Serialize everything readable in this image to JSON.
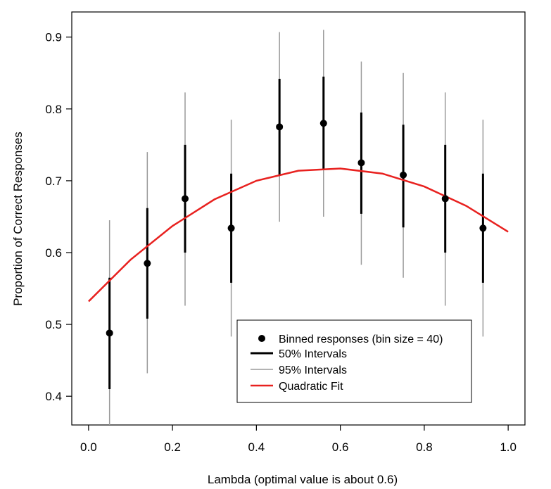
{
  "chart_data": {
    "type": "scatter",
    "xlabel": "Lambda (optimal value is about 0.6)",
    "ylabel": "Proportion of Correct Responses",
    "xlim": [
      -0.04,
      1.04
    ],
    "ylim": [
      0.36,
      0.935
    ],
    "x_ticks": [
      0.0,
      0.2,
      0.4,
      0.6,
      0.8,
      1.0
    ],
    "x_tick_labels": [
      "0.0",
      "0.2",
      "0.4",
      "0.6",
      "0.8",
      "1.0"
    ],
    "y_ticks": [
      0.4,
      0.5,
      0.6,
      0.7,
      0.8,
      0.9
    ],
    "y_tick_labels": [
      "0.4",
      "0.5",
      "0.6",
      "0.7",
      "0.8",
      "0.9"
    ],
    "grid": false,
    "legend_position": "bottom-right",
    "series": [
      {
        "name": "Binned responses (bin size = 40)",
        "kind": "points",
        "color": "#000000",
        "x": [
          0.05,
          0.14,
          0.23,
          0.34,
          0.455,
          0.56,
          0.65,
          0.75,
          0.85,
          0.94
        ],
        "y": [
          0.488,
          0.585,
          0.675,
          0.634,
          0.775,
          0.78,
          0.725,
          0.708,
          0.675,
          0.634
        ]
      },
      {
        "name": "50% Intervals",
        "kind": "interval",
        "color": "#000000",
        "x": [
          0.05,
          0.14,
          0.23,
          0.34,
          0.455,
          0.56,
          0.65,
          0.75,
          0.85,
          0.94
        ],
        "low": [
          0.41,
          0.508,
          0.6,
          0.558,
          0.708,
          0.715,
          0.654,
          0.635,
          0.6,
          0.558
        ],
        "high": [
          0.565,
          0.662,
          0.75,
          0.71,
          0.842,
          0.845,
          0.795,
          0.778,
          0.75,
          0.71
        ]
      },
      {
        "name": "95% Intervals",
        "kind": "interval",
        "color": "#9a9a9a",
        "x": [
          0.05,
          0.14,
          0.23,
          0.34,
          0.455,
          0.56,
          0.65,
          0.75,
          0.85,
          0.94
        ],
        "low": [
          0.355,
          0.432,
          0.526,
          0.483,
          0.643,
          0.65,
          0.583,
          0.565,
          0.526,
          0.483
        ],
        "high": [
          0.645,
          0.74,
          0.823,
          0.785,
          0.907,
          0.91,
          0.866,
          0.85,
          0.823,
          0.785
        ]
      },
      {
        "name": "Quadratic Fit",
        "kind": "curve",
        "color": "#e8211f",
        "x": [
          0.0,
          0.1,
          0.2,
          0.3,
          0.4,
          0.5,
          0.6,
          0.7,
          0.8,
          0.9,
          1.0
        ],
        "y": [
          0.532,
          0.59,
          0.637,
          0.674,
          0.7,
          0.714,
          0.717,
          0.71,
          0.692,
          0.665,
          0.629
        ]
      }
    ]
  }
}
